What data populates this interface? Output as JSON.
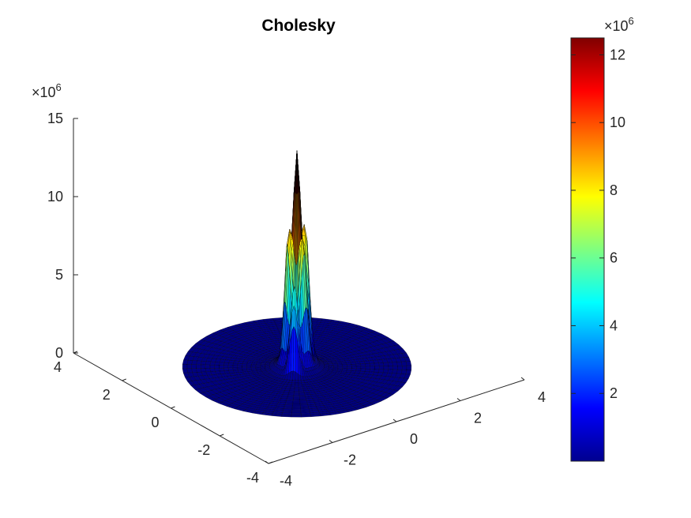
{
  "chart_data": {
    "type": "surface",
    "title": "Cholesky",
    "colormap": "jet",
    "x": {
      "ticks": [
        -4,
        -2,
        0,
        2,
        4
      ],
      "lim": [
        -4,
        4
      ]
    },
    "y": {
      "ticks": [
        -4,
        -2,
        0,
        2,
        4
      ],
      "lim": [
        -4,
        4
      ]
    },
    "z": {
      "ticks": [
        0,
        5,
        10,
        15
      ],
      "tick_labels": [
        "0",
        "5",
        "10",
        "15"
      ],
      "lim": [
        0,
        15000000
      ],
      "multiplier": "×10",
      "multiplier_exp": "6"
    },
    "colorbar": {
      "ticks": [
        2,
        4,
        6,
        8,
        10,
        12
      ],
      "tick_labels": [
        "2",
        "4",
        "6",
        "8",
        "10",
        "12"
      ],
      "lim": [
        0,
        12500000
      ],
      "multiplier": "×10",
      "multiplier_exp": "6"
    },
    "domain": "disk, radius 3",
    "peaks": [
      {
        "x": 0.0,
        "y": 0.0,
        "z": 11500000
      },
      {
        "x": -0.28,
        "y": 0.0,
        "z": 7600000
      },
      {
        "x": 0.28,
        "y": 0.0,
        "z": 7600000
      },
      {
        "x": 0.0,
        "y": -0.28,
        "z": 7000000
      },
      {
        "x": 0.0,
        "y": 0.28,
        "z": 6200000
      },
      {
        "x": -0.35,
        "y": -0.35,
        "z": 5200000
      },
      {
        "x": 0.35,
        "y": 0.35,
        "z": 5500000
      }
    ],
    "base_level": 0
  }
}
